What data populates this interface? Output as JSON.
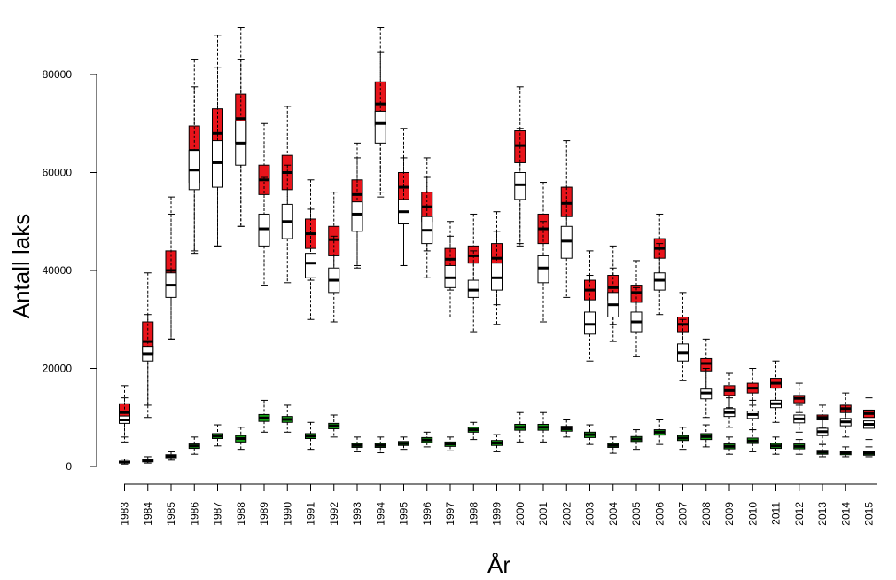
{
  "chart_data": {
    "type": "boxplot",
    "xlabel": "År",
    "ylabel": "Antall laks",
    "ylim": [
      -2500,
      92500
    ],
    "yticks": [
      0,
      20000,
      40000,
      60000,
      80000
    ],
    "categories": [
      "1983",
      "1984",
      "1985",
      "1986",
      "1987",
      "1988",
      "1989",
      "1990",
      "1991",
      "1992",
      "1993",
      "1994",
      "1995",
      "1996",
      "1997",
      "1998",
      "1999",
      "2000",
      "2001",
      "2002",
      "2003",
      "2004",
      "2005",
      "2006",
      "2007",
      "2008",
      "2009",
      "2010",
      "2011",
      "2012",
      "2013",
      "2014",
      "2015"
    ],
    "series": [
      {
        "color": "#e8141b",
        "boxes": [
          [
            6000,
            9500,
            11000,
            12800,
            16500
          ],
          [
            12500,
            23000,
            25500,
            29500,
            39500
          ],
          [
            26000,
            36000,
            40000,
            44000,
            55000
          ],
          [
            44000,
            58000,
            64500,
            69500,
            83000
          ],
          [
            45000,
            63000,
            68000,
            73000,
            88000
          ],
          [
            49000,
            66000,
            71000,
            76000,
            89500
          ],
          [
            46000,
            55500,
            58500,
            61500,
            70000
          ],
          [
            47000,
            56500,
            60000,
            63500,
            73500
          ],
          [
            38000,
            44500,
            47500,
            50500,
            58500
          ],
          [
            38000,
            43000,
            46300,
            49000,
            56000
          ],
          [
            41000,
            52000,
            55500,
            58500,
            66000
          ],
          [
            55000,
            69500,
            74000,
            78500,
            89500
          ],
          [
            41000,
            53500,
            57000,
            60000,
            69000
          ],
          [
            44000,
            50000,
            53000,
            56000,
            63000
          ],
          [
            36000,
            40500,
            42300,
            44500,
            50000
          ],
          [
            35000,
            41500,
            43000,
            45000,
            51500
          ],
          [
            33000,
            39000,
            42500,
            45500,
            52000
          ],
          [
            45000,
            62000,
            65500,
            68500,
            77500
          ],
          [
            38000,
            45500,
            48500,
            51500,
            58000
          ],
          [
            44000,
            51000,
            53700,
            57000,
            66500
          ],
          [
            29000,
            34000,
            36000,
            38000,
            44000
          ],
          [
            29000,
            34000,
            36500,
            39000,
            45000
          ],
          [
            29000,
            33500,
            35500,
            37000,
            42000
          ],
          [
            38000,
            42500,
            44500,
            46500,
            51500
          ],
          [
            23000,
            27500,
            29000,
            30500,
            35500
          ],
          [
            16000,
            19500,
            21000,
            22000,
            26000
          ],
          [
            12000,
            14500,
            15500,
            16500,
            19000
          ],
          [
            12500,
            15000,
            16000,
            17000,
            20000
          ],
          [
            13500,
            16000,
            17000,
            18000,
            21500
          ],
          [
            11000,
            13000,
            13900,
            14500,
            17000
          ],
          [
            8000,
            9500,
            10000,
            10500,
            12500
          ],
          [
            9000,
            11000,
            11800,
            12500,
            15000
          ],
          [
            8000,
            10000,
            10800,
            11500,
            14000
          ]
        ]
      },
      {
        "color": "#ffffff",
        "boxes": [
          [
            5000,
            8800,
            9500,
            10300,
            14000
          ],
          [
            10000,
            21500,
            23000,
            24500,
            31000
          ],
          [
            26000,
            34500,
            37000,
            39500,
            51500
          ],
          [
            43500,
            56500,
            60500,
            64500,
            77500
          ],
          [
            45000,
            57000,
            62000,
            66500,
            81500
          ],
          [
            49000,
            61500,
            66000,
            70500,
            83000
          ],
          [
            37000,
            45000,
            48500,
            51500,
            59000
          ],
          [
            37500,
            46500,
            50000,
            53500,
            61500
          ],
          [
            30000,
            38500,
            41500,
            43500,
            52500
          ],
          [
            29500,
            35500,
            38000,
            40500,
            47000
          ],
          [
            40500,
            48000,
            51500,
            54000,
            63000
          ],
          [
            56000,
            66000,
            70000,
            72500,
            84500
          ],
          [
            41000,
            49500,
            52000,
            54500,
            63000
          ],
          [
            38500,
            45500,
            48200,
            51000,
            59000
          ],
          [
            30500,
            36500,
            38500,
            41000,
            47000
          ],
          [
            27500,
            34500,
            36000,
            38000,
            44000
          ],
          [
            29000,
            36000,
            38500,
            41500,
            48000
          ],
          [
            45500,
            54500,
            57500,
            60000,
            69000
          ],
          [
            29500,
            37500,
            40500,
            43000,
            50000
          ],
          [
            34500,
            42500,
            46000,
            49000,
            57000
          ],
          [
            21500,
            27000,
            29000,
            31500,
            39000
          ],
          [
            25500,
            30500,
            33000,
            35500,
            40500
          ],
          [
            22500,
            27500,
            29500,
            31500,
            36500
          ],
          [
            31000,
            36000,
            38000,
            39500,
            45500
          ],
          [
            17500,
            21500,
            23200,
            25000,
            30000
          ],
          [
            10000,
            13800,
            15000,
            15800,
            20000
          ],
          [
            8000,
            10200,
            11000,
            11800,
            14000
          ],
          [
            7500,
            9800,
            10600,
            11300,
            13500
          ],
          [
            9000,
            12000,
            12800,
            13500,
            16000
          ],
          [
            7000,
            8900,
            9700,
            10500,
            12500
          ],
          [
            4500,
            6300,
            7100,
            7800,
            10000
          ],
          [
            6000,
            8300,
            9100,
            9800,
            12500
          ],
          [
            5500,
            7800,
            8600,
            9300,
            11500
          ]
        ]
      },
      {
        "color": "#16a016",
        "boxes": [
          [
            500,
            700,
            900,
            1100,
            1500
          ],
          [
            700,
            950,
            1200,
            1450,
            2000
          ],
          [
            1300,
            1800,
            2100,
            2400,
            3000
          ],
          [
            2500,
            3700,
            4200,
            4600,
            6000
          ],
          [
            4200,
            5700,
            6200,
            6700,
            8500
          ],
          [
            3500,
            5000,
            5700,
            6300,
            8000
          ],
          [
            7000,
            9200,
            9900,
            10600,
            13500
          ],
          [
            7000,
            9000,
            9600,
            10200,
            12500
          ],
          [
            3500,
            5700,
            6200,
            6700,
            9000
          ],
          [
            6000,
            7700,
            8300,
            8800,
            10500
          ],
          [
            3000,
            3900,
            4300,
            4700,
            6000
          ],
          [
            2800,
            3900,
            4300,
            4700,
            6000
          ],
          [
            3500,
            4300,
            4700,
            5100,
            6000
          ],
          [
            4000,
            4900,
            5400,
            5900,
            7000
          ],
          [
            3200,
            4100,
            4600,
            5000,
            6000
          ],
          [
            5500,
            7000,
            7500,
            8000,
            9000
          ],
          [
            3000,
            4300,
            4800,
            5300,
            6500
          ],
          [
            5000,
            7400,
            8000,
            8600,
            11000
          ],
          [
            5000,
            7400,
            8000,
            8600,
            11000
          ],
          [
            6000,
            7200,
            7700,
            8200,
            9500
          ],
          [
            4500,
            5900,
            6500,
            7000,
            8500
          ],
          [
            2700,
            3900,
            4300,
            4700,
            6000
          ],
          [
            3500,
            5100,
            5600,
            6100,
            7500
          ],
          [
            4500,
            6400,
            7000,
            7500,
            9500
          ],
          [
            3500,
            5300,
            5800,
            6300,
            8000
          ],
          [
            4000,
            5500,
            6100,
            6700,
            8500
          ],
          [
            2500,
            3600,
            4100,
            4600,
            6000
          ],
          [
            3000,
            4700,
            5200,
            5800,
            7500
          ],
          [
            2500,
            3700,
            4200,
            4700,
            6000
          ],
          [
            2500,
            3600,
            4100,
            4600,
            5500
          ],
          [
            2000,
            2500,
            2900,
            3300,
            4500
          ],
          [
            2000,
            2400,
            2800,
            3100,
            4000
          ],
          [
            2000,
            2300,
            2700,
            3000,
            4000
          ]
        ]
      }
    ]
  }
}
